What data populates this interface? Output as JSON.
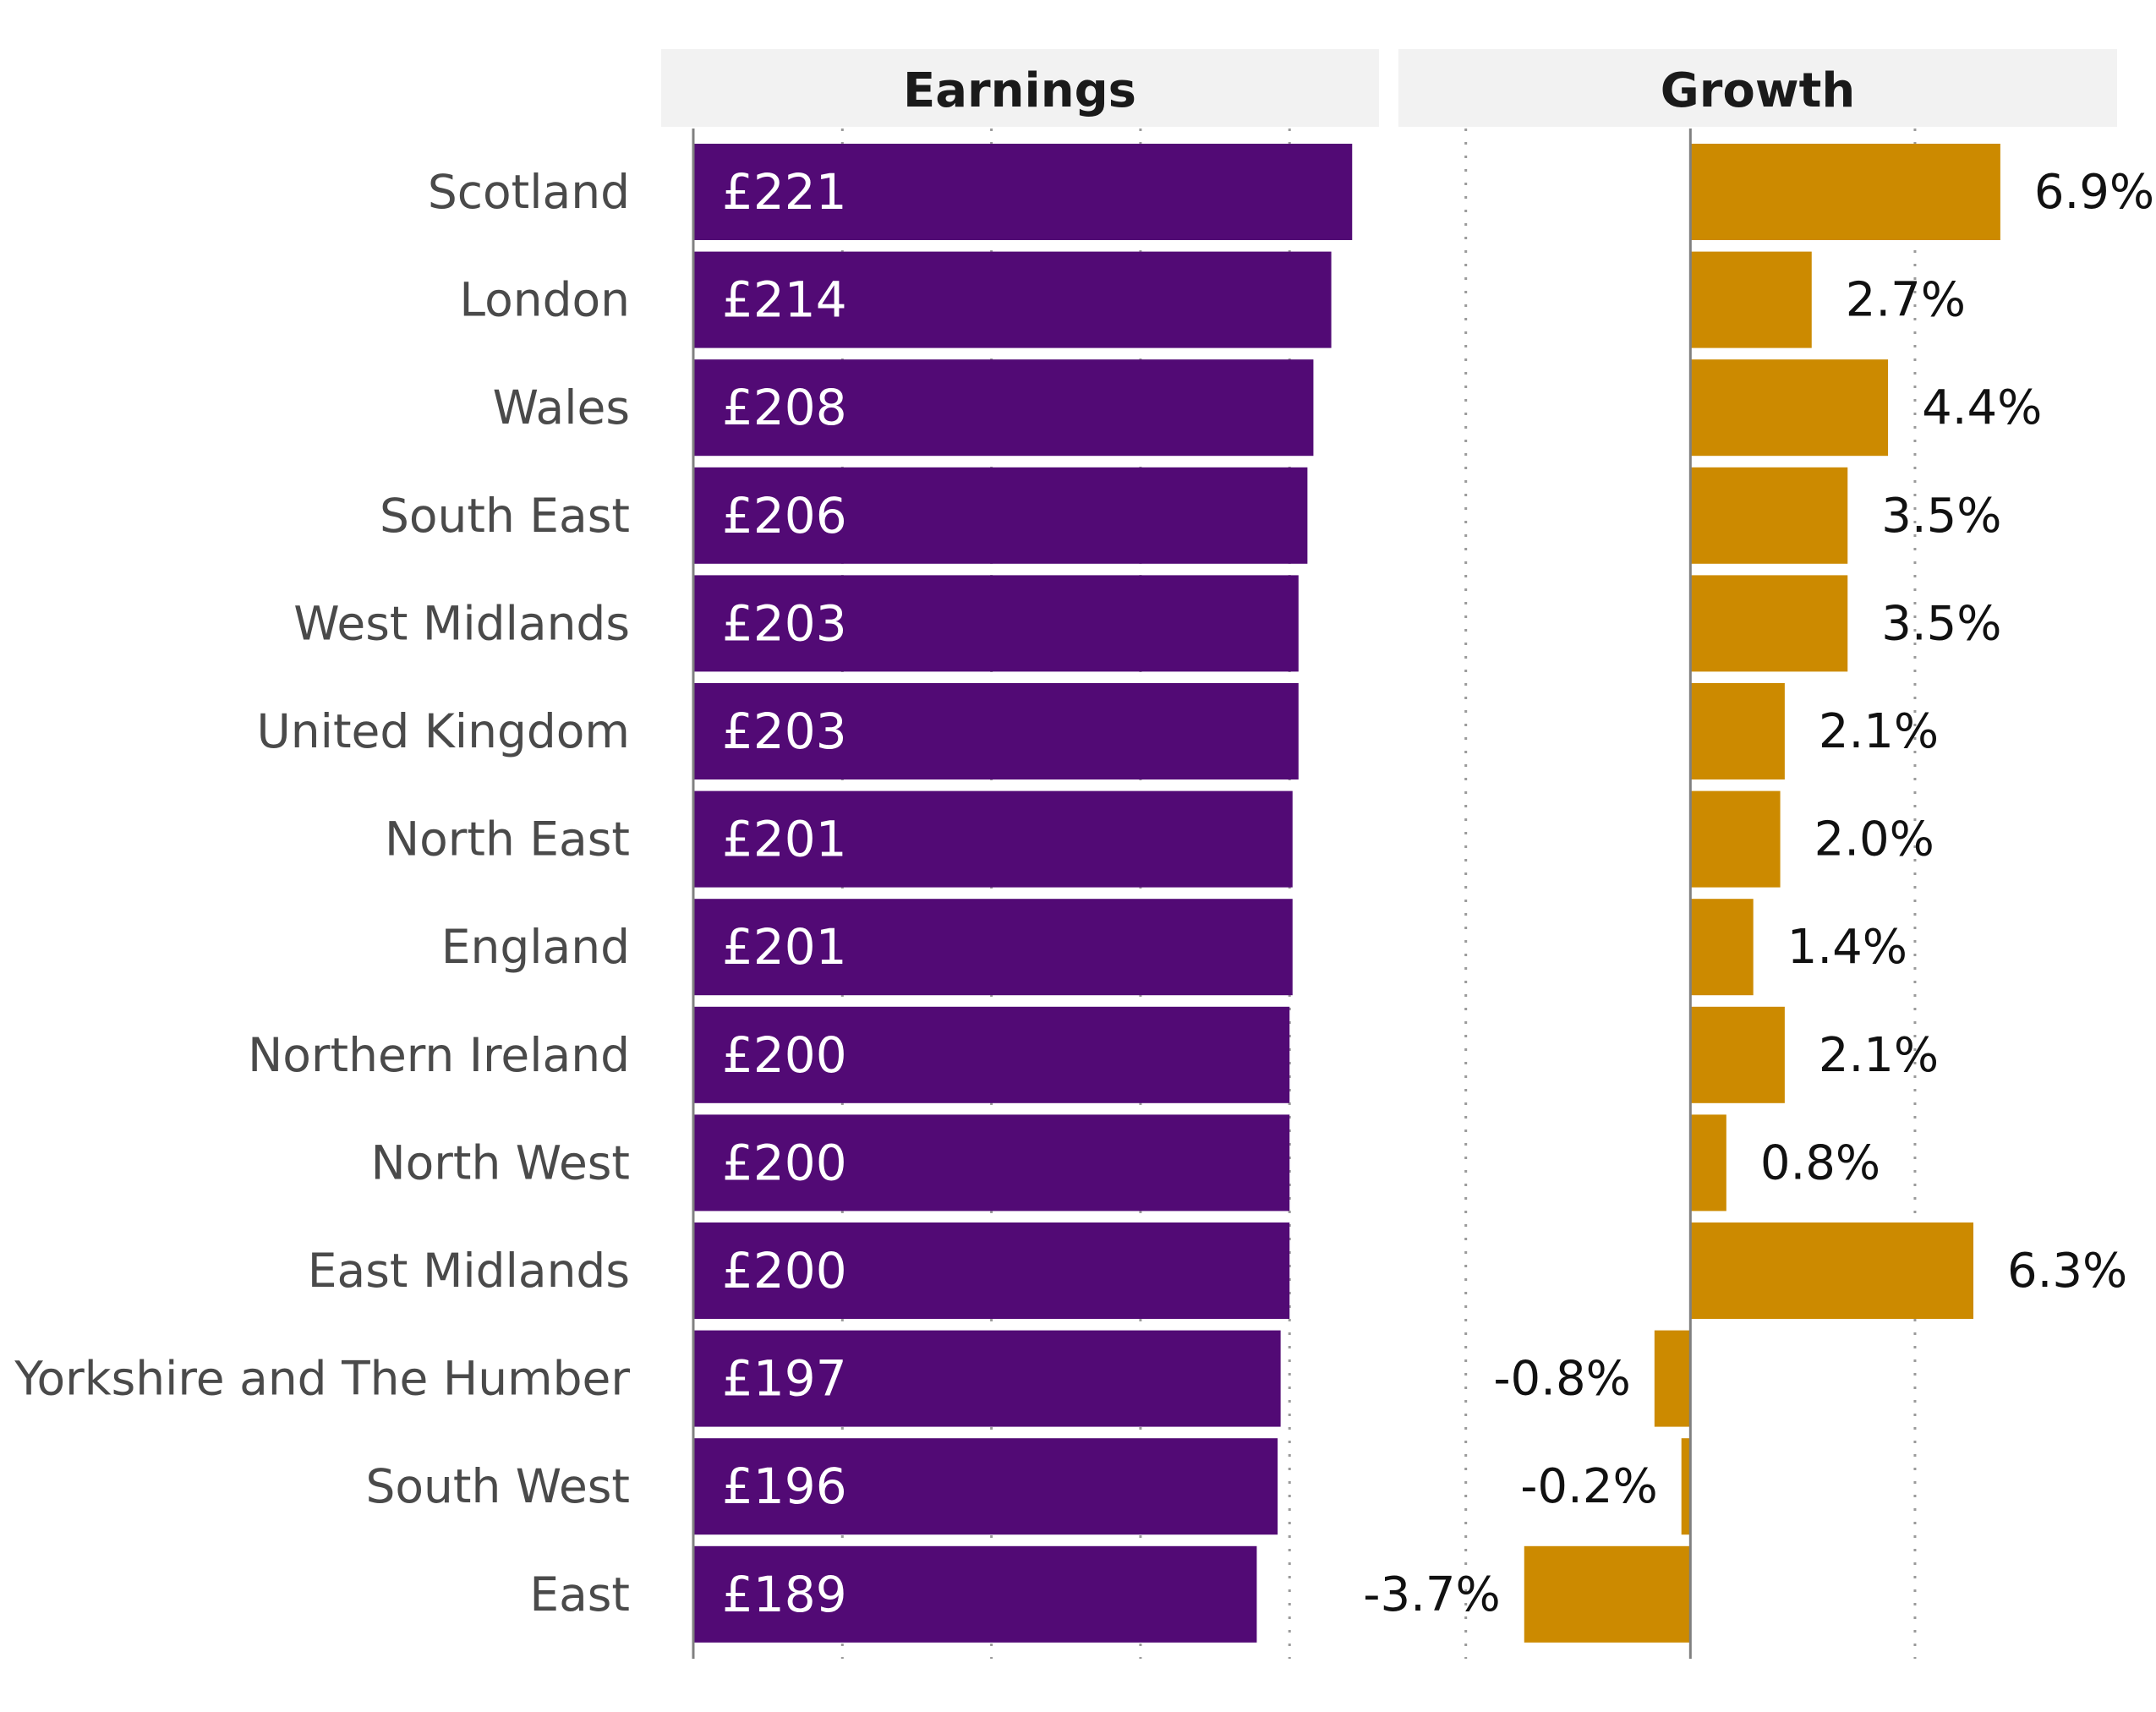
{
  "chart_data": {
    "type": "bar",
    "orientation": "horizontal",
    "categories": [
      "Scotland",
      "London",
      "Wales",
      "South East",
      "West Midlands",
      "United Kingdom",
      "North East",
      "England",
      "Northern Ireland",
      "North West",
      "East Midlands",
      "Yorkshire and The Humber",
      "South West",
      "East"
    ],
    "panels": [
      {
        "title": "Earnings",
        "name": "Earnings",
        "values": [
          221,
          214,
          208,
          206,
          203,
          203,
          201,
          201,
          200,
          200,
          200,
          197,
          196,
          189
        ],
        "labels": [
          "£221",
          "£214",
          "£208",
          "£206",
          "£203",
          "£203",
          "£201",
          "£201",
          "£200",
          "£200",
          "£200",
          "£197",
          "£196",
          "£189"
        ],
        "xlim": [
          0,
          230
        ],
        "color": "#520a75",
        "label_color": "#ffffff",
        "label_position": "inside-left",
        "grid": "dotted-vertical"
      },
      {
        "title": "Growth",
        "name": "Growth",
        "values": [
          6.9,
          2.7,
          4.4,
          3.5,
          3.5,
          2.1,
          2.0,
          1.4,
          2.1,
          0.8,
          6.3,
          -0.8,
          -0.2,
          -3.7
        ],
        "labels": [
          "6.9%",
          "2.7%",
          "4.4%",
          "3.5%",
          "3.5%",
          "2.1%",
          "2.0%",
          "1.4%",
          "2.1%",
          "0.8%",
          "6.3%",
          "-0.8%",
          "-0.2%",
          "-3.7%"
        ],
        "xlim": [
          -6.5,
          9.5
        ],
        "color": "#cc8a00",
        "label_color": "#111111",
        "label_position": "outside-end",
        "grid": "dotted-vertical"
      }
    ],
    "panel_header_color": "#f2f2f2",
    "axis_color": "#808080"
  }
}
